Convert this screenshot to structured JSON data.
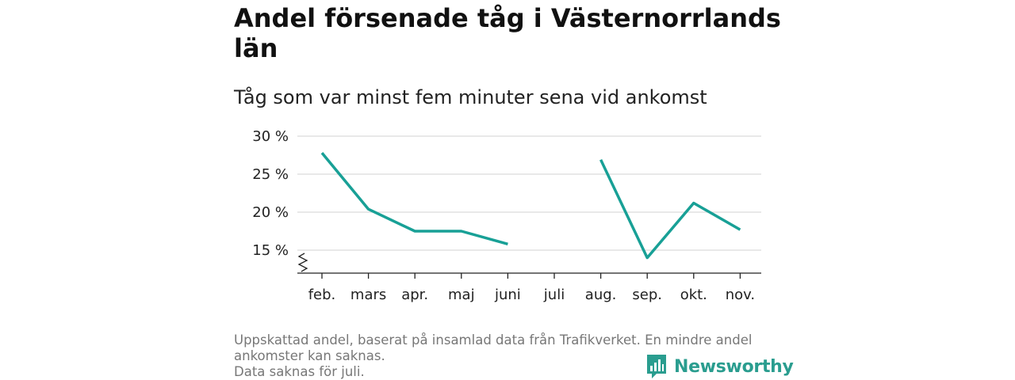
{
  "header": {
    "title": "Andel försenade tåg i Västernorrlands län",
    "subtitle": "Tåg som var minst fem minuter sena vid ankomst"
  },
  "chart_data": {
    "type": "line",
    "categories": [
      "feb.",
      "mars",
      "apr.",
      "maj",
      "juni",
      "juli",
      "aug.",
      "sep.",
      "okt.",
      "nov."
    ],
    "series": [
      {
        "values": [
          27.8,
          20.4,
          17.5,
          17.5,
          15.8,
          null,
          26.9,
          14.0,
          21.2,
          17.7
        ]
      }
    ],
    "y_ticks": [
      15,
      20,
      25,
      30
    ],
    "y_tick_labels": [
      "15 %",
      "20 %",
      "25 %",
      "30 %"
    ],
    "ylim": [
      12,
      30
    ],
    "y_axis_break": true,
    "grid": "horizontal",
    "line_color": "#18a096"
  },
  "footer": {
    "note_line1": "Uppskattad andel, baserat på insamlad data från Trafikverket. En mindre andel",
    "note_line2": "ankomster kan saknas.",
    "note_line3": "Data saknas för juli."
  },
  "brand": {
    "name": "Newsworthy",
    "color": "#2a9d8f",
    "icon": "bar-chart-speech-bubble-icon"
  }
}
